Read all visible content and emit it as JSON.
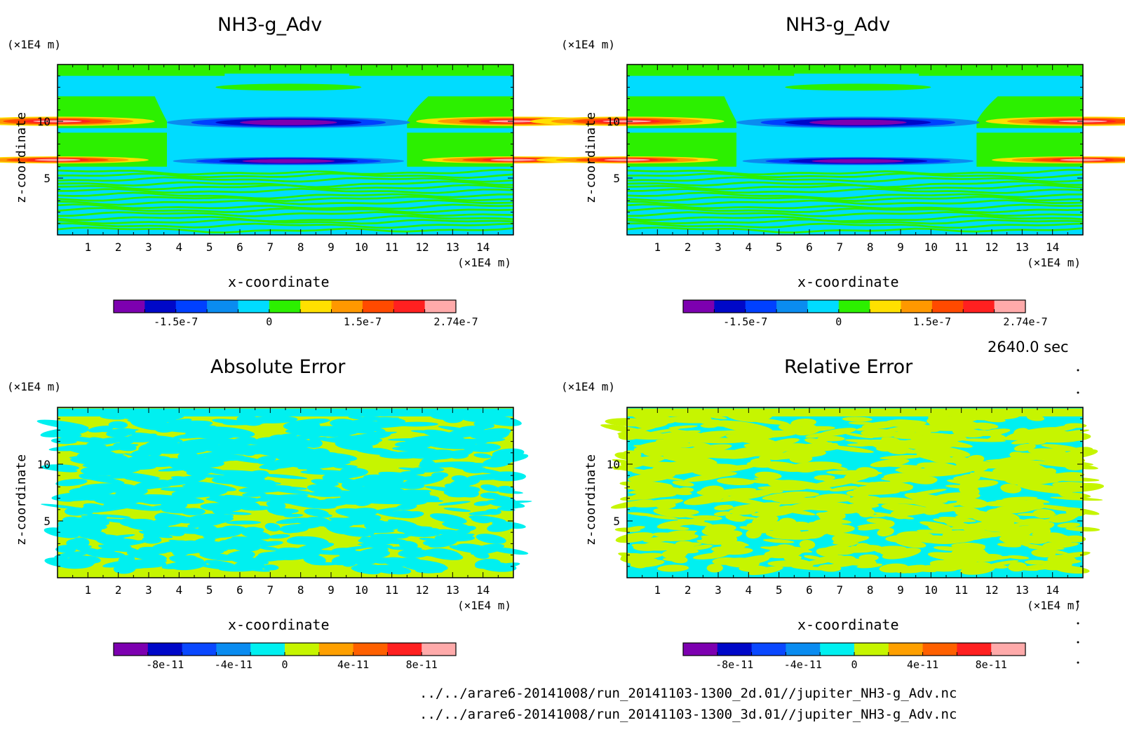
{
  "time_label": "2640.0 sec",
  "footer_lines": [
    "../../arare6-20141008/run_20141103-1300_2d.01//jupiter_NH3-g_Adv.nc",
    "../../arare6-20141008/run_20141103-1300_3d.01//jupiter_NH3-g_Adv.nc"
  ],
  "colors": {
    "field": [
      "#7d00b0",
      "#0008c8",
      "#0040ff",
      "#0a8cf0",
      "#00dcff",
      "#2cf000",
      "#ffe000",
      "#ff9800",
      "#ff4a00",
      "#ff2020",
      "#ffaaaa"
    ],
    "error": [
      "#7d00b0",
      "#0008c8",
      "#0a48ff",
      "#0a8cf0",
      "#00f0f0",
      "#c6f500",
      "#ffa000",
      "#ff6000",
      "#ff2020",
      "#ffaaaa"
    ]
  },
  "chart_data": [
    {
      "type": "heatmap",
      "title": "NH3-g_Adv",
      "xlabel": "x-coordinate",
      "ylabel": "z-coordinate",
      "x_unit": "(×1E4 m)",
      "y_unit": "(×1E4 m)",
      "xlim": [
        0,
        15
      ],
      "ylim": [
        0,
        15
      ],
      "x_ticks": [
        "1",
        "2",
        "3",
        "4",
        "5",
        "6",
        "7",
        "8",
        "9",
        "10",
        "11",
        "12",
        "13",
        "14"
      ],
      "y_ticks": [
        "5",
        "10"
      ],
      "colorbar_labels": [
        "-1.5e-7",
        "0",
        "1.5e-7",
        "2.74e-7"
      ],
      "pattern": "field"
    },
    {
      "type": "heatmap",
      "title": "NH3-g_Adv",
      "xlabel": "x-coordinate",
      "ylabel": "z-coordinate",
      "x_unit": "(×1E4 m)",
      "y_unit": "(×1E4 m)",
      "xlim": [
        0,
        15
      ],
      "ylim": [
        0,
        15
      ],
      "x_ticks": [
        "1",
        "2",
        "3",
        "4",
        "5",
        "6",
        "7",
        "8",
        "9",
        "10",
        "11",
        "12",
        "13",
        "14"
      ],
      "y_ticks": [
        "5",
        "10"
      ],
      "colorbar_labels": [
        "-1.5e-7",
        "0",
        "1.5e-7",
        "2.74e-7"
      ],
      "pattern": "field"
    },
    {
      "type": "heatmap",
      "title": "Absolute Error",
      "xlabel": "x-coordinate",
      "ylabel": "z-coordinate",
      "x_unit": "(×1E4 m)",
      "y_unit": "(×1E4 m)",
      "xlim": [
        0,
        15
      ],
      "ylim": [
        0,
        15
      ],
      "x_ticks": [
        "1",
        "2",
        "3",
        "4",
        "5",
        "6",
        "7",
        "8",
        "9",
        "10",
        "11",
        "12",
        "13",
        "14"
      ],
      "y_ticks": [
        "5",
        "10"
      ],
      "colorbar_labels": [
        "-8e-11",
        "-4e-11",
        "0",
        "4e-11",
        "8e-11"
      ],
      "pattern": "noise"
    },
    {
      "type": "heatmap",
      "title": "Relative Error",
      "xlabel": "x-coordinate",
      "ylabel": "z-coordinate",
      "x_unit": "(×1E4 m)",
      "y_unit": "(×1E4 m)",
      "xlim": [
        0,
        15
      ],
      "ylim": [
        0,
        15
      ],
      "x_ticks": [
        "1",
        "2",
        "3",
        "4",
        "5",
        "6",
        "7",
        "8",
        "9",
        "10",
        "11",
        "12",
        "13",
        "14"
      ],
      "y_ticks": [
        "5",
        "10"
      ],
      "colorbar_labels": [
        "-8e-11",
        "-4e-11",
        "0",
        "4e-11",
        "8e-11"
      ],
      "pattern": "noise"
    }
  ]
}
